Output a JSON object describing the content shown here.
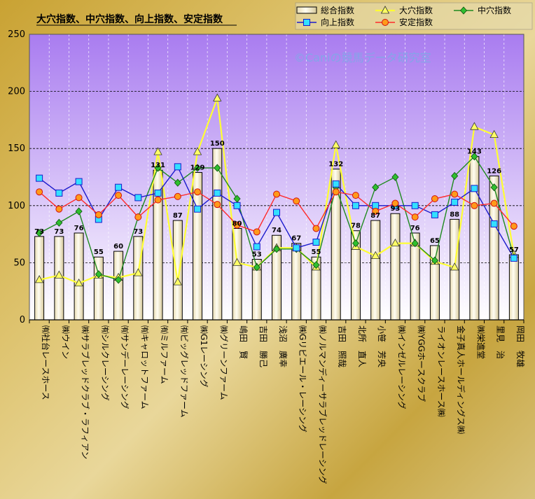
{
  "chart_data": {
    "type": "bar",
    "title": "大穴指数、中穴指数、向上指数、安定指数",
    "watermark": "©Caniの競馬データ研究室",
    "ylim": [
      0,
      250
    ],
    "yticks": [
      0,
      50,
      100,
      150,
      200,
      250
    ],
    "grid": true,
    "legend_position": "top-right",
    "categories": [
      "㈲社台レースホース",
      "㈱ウイン",
      "㈱サラブレッドクラブ・ラフィアン",
      "㈲シルクレーシング",
      "㈲サンデーレーシング",
      "㈲キャロットファーム",
      "㈲ミルファーム",
      "㈲ビッグレッドファーム",
      "㈱G1レーシング",
      "㈱グリーンファーム",
      "嶋田　賢",
      "吉田　勝己",
      "浅沼　廣幸",
      "㈱Gリビエール・レーシング",
      "㈱ノルマンディーサラブレッドレーシング",
      "吉田　照哉",
      "北所　直人",
      "小笹　芳央",
      "㈱インゼルレーシング",
      "㈱YGGホースクラブ",
      "ライオンレースホース㈱",
      "金子真人ホールディングス㈱",
      "㈱栄進堂",
      "里見　治",
      "岡田　牧雄"
    ],
    "series": [
      {
        "name": "総合指数",
        "type": "bar",
        "color": "#fffbe6",
        "values": [
          73,
          73,
          76,
          55,
          60,
          73,
          131,
          87,
          129,
          150,
          80,
          53,
          74,
          67,
          55,
          132,
          78,
          87,
          93,
          76,
          65,
          88,
          143,
          126,
          57
        ],
        "labels": [
          "73",
          "73",
          "76",
          "55",
          "60",
          "73",
          "131",
          "87",
          "129",
          "150",
          "80",
          "53",
          "74",
          "67",
          "55",
          "132",
          "78",
          "87",
          "93",
          "76",
          "65",
          "88",
          "143",
          "126",
          "57"
        ]
      },
      {
        "name": "大穴指数",
        "type": "line",
        "color": "#ffff33",
        "marker": "triangle",
        "values": [
          35,
          39,
          32,
          39,
          37,
          41,
          147,
          33,
          147,
          194,
          50,
          46,
          63,
          63,
          46,
          153,
          64,
          56,
          67,
          67,
          51,
          46,
          169,
          162,
          57
        ]
      },
      {
        "name": "中穴指数",
        "type": "line",
        "color": "#1e8a1e",
        "marker": "diamond",
        "values": [
          76,
          85,
          95,
          40,
          35,
          90,
          133,
          120,
          133,
          133,
          106,
          46,
          62,
          62,
          48,
          116,
          67,
          116,
          125,
          67,
          52,
          126,
          143,
          116,
          55
        ]
      },
      {
        "name": "向上指数",
        "type": "line",
        "color": "#1a1acc",
        "marker": "square",
        "values": [
          124,
          111,
          121,
          88,
          116,
          107,
          111,
          134,
          97,
          111,
          100,
          64,
          94,
          63,
          68,
          119,
          100,
          100,
          100,
          100,
          92,
          103,
          115,
          84,
          54
        ]
      },
      {
        "name": "安定指数",
        "type": "line",
        "color": "#ff2a2a",
        "marker": "circle",
        "values": [
          112,
          97,
          107,
          92,
          109,
          90,
          105,
          108,
          112,
          101,
          83,
          77,
          110,
          104,
          80,
          112,
          109,
          95,
          102,
          90,
          106,
          110,
          100,
          102,
          82
        ]
      }
    ]
  }
}
